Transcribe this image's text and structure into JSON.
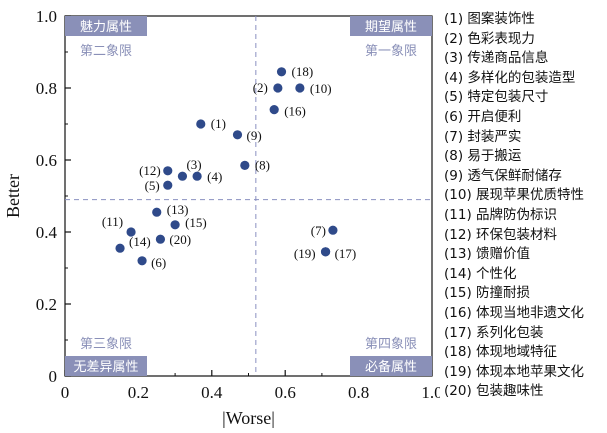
{
  "chart_data": {
    "type": "scatter",
    "title": "",
    "xlabel": "|Worse|",
    "ylabel": "Better",
    "xlim": [
      0,
      1.0
    ],
    "ylim": [
      0,
      1.0
    ],
    "x_ticks": [
      "0",
      "0.2",
      "0.4",
      "0.6",
      "0.8",
      "1.0"
    ],
    "y_ticks": [
      "0",
      "0.2",
      "0.4",
      "0.6",
      "0.8",
      "1.0"
    ],
    "grid": false,
    "divider_lines": {
      "x": 0.52,
      "y": 0.49
    },
    "marker_color": "#2f4a8a",
    "points": [
      {
        "label": "(1)",
        "x": 0.37,
        "y": 0.7
      },
      {
        "label": "(2)",
        "x": 0.58,
        "y": 0.8
      },
      {
        "label": "(3)",
        "x": 0.32,
        "y": 0.555
      },
      {
        "label": "(4)",
        "x": 0.36,
        "y": 0.555
      },
      {
        "label": "(5)",
        "x": 0.28,
        "y": 0.53
      },
      {
        "label": "(6)",
        "x": 0.21,
        "y": 0.32
      },
      {
        "label": "(7)",
        "x": 0.73,
        "y": 0.405
      },
      {
        "label": "(8)",
        "x": 0.49,
        "y": 0.585
      },
      {
        "label": "(9)",
        "x": 0.47,
        "y": 0.67
      },
      {
        "label": "(10)",
        "x": 0.64,
        "y": 0.8
      },
      {
        "label": "(11)",
        "x": 0.18,
        "y": 0.4
      },
      {
        "label": "(12)",
        "x": 0.28,
        "y": 0.57
      },
      {
        "label": "(13)",
        "x": 0.25,
        "y": 0.455
      },
      {
        "label": "(14)",
        "x": 0.15,
        "y": 0.355
      },
      {
        "label": "(15)",
        "x": 0.3,
        "y": 0.42
      },
      {
        "label": "(16)",
        "x": 0.57,
        "y": 0.74
      },
      {
        "label": "(17)",
        "x": 0.71,
        "y": 0.345
      },
      {
        "label": "(18)",
        "x": 0.59,
        "y": 0.845
      },
      {
        "label": "(19)",
        "x": 0.71,
        "y": 0.345
      },
      {
        "label": "(20)",
        "x": 0.26,
        "y": 0.38
      }
    ],
    "attribute_labels": {
      "top_left": "魅力属性",
      "top_right": "期望属性",
      "bottom_left": "无差异属性",
      "bottom_right": "必备属性",
      "background_color": "#8a90b8"
    },
    "quadrant_labels": {
      "second": "第二象限",
      "first": "第一象限",
      "third": "第三象限",
      "fourth": "第四象限",
      "color": "#8a90b8"
    },
    "legend": [
      "(1) 图案装饰性",
      "(2) 色彩表现力",
      "(3) 传递商品信息",
      "(4) 多样化的包装造型",
      "(5) 特定包装尺寸",
      "(6) 开启便利",
      "(7) 封装严实",
      "(8) 易于搬运",
      "(9) 透气保鲜耐储存",
      "(10) 展现苹果优质特性",
      "(11) 品牌防伪标识",
      "(12) 环保包装材料",
      "(13) 馈赠价值",
      "(14) 个性化",
      "(15) 防撞耐损",
      "(16) 体现当地非遗文化",
      "(17) 系列化包装",
      "(18) 体现地域特征",
      "(19) 体现本地苹果文化",
      "(20) 包装趣味性"
    ]
  }
}
